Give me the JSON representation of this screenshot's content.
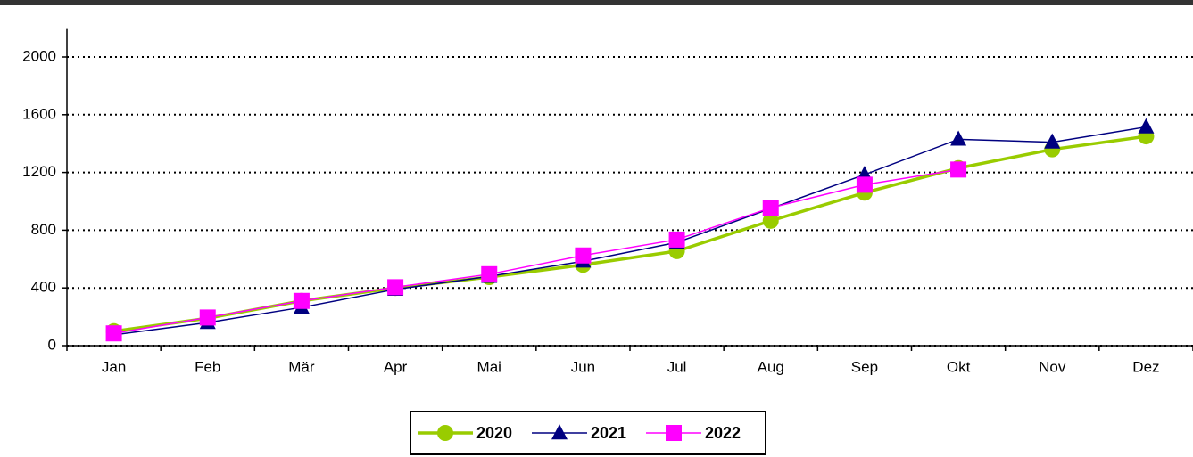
{
  "chart_data": {
    "type": "line",
    "categories": [
      "Jan",
      "Feb",
      "Mär",
      "Apr",
      "Mai",
      "Jun",
      "Jul",
      "Aug",
      "Sep",
      "Okt",
      "Nov",
      "Dez"
    ],
    "series": [
      {
        "name": "2020",
        "color": "#99cc00",
        "marker": "circle",
        "values": [
          100,
          190,
          310,
          400,
          475,
          560,
          655,
          865,
          1060,
          1230,
          1360,
          1450
        ]
      },
      {
        "name": "2021",
        "color": "#000080",
        "marker": "triangle",
        "values": [
          75,
          160,
          265,
          390,
          480,
          585,
          715,
          950,
          1185,
          1430,
          1410,
          1515
        ]
      },
      {
        "name": "2022",
        "color": "#ff00ff",
        "marker": "square",
        "values": [
          85,
          195,
          310,
          405,
          495,
          625,
          735,
          955,
          1115,
          1220,
          null,
          null
        ]
      }
    ],
    "ylim": [
      0,
      2200
    ],
    "yticks": [
      0,
      400,
      800,
      1200,
      1600,
      2000
    ],
    "grid": true
  }
}
